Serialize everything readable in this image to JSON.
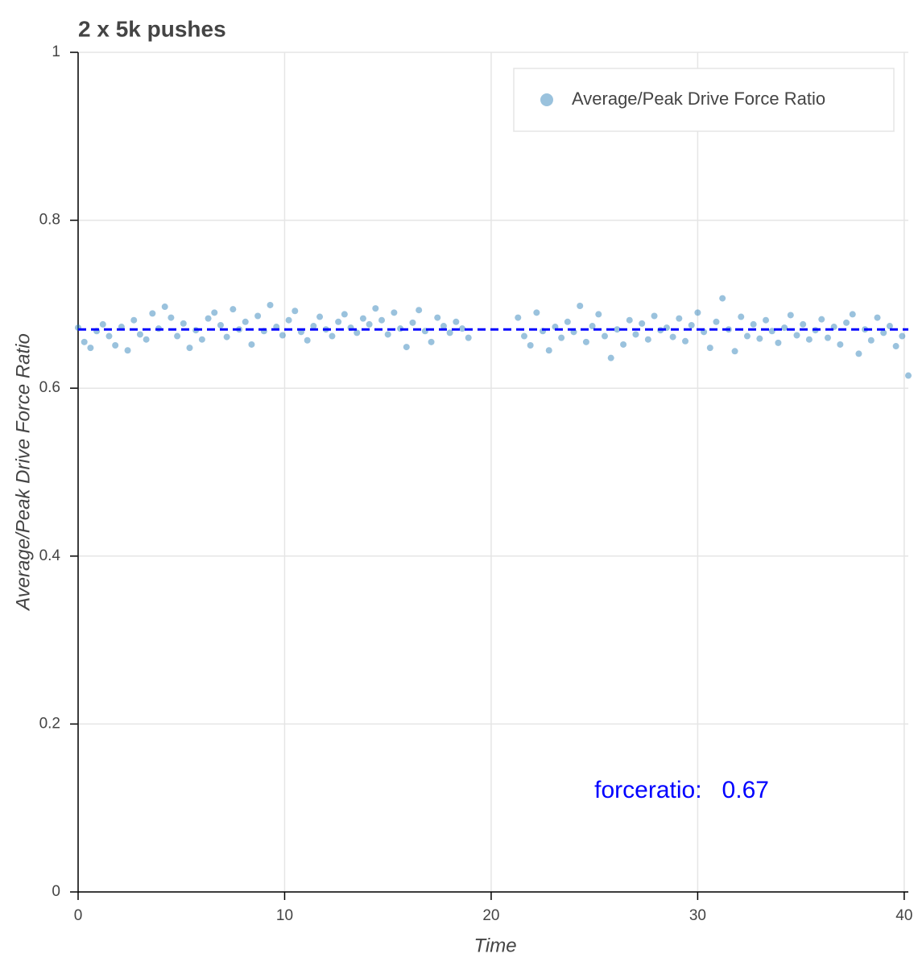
{
  "chart_data": {
    "type": "scatter",
    "title": "2 x 5k pushes",
    "x_label": "Time",
    "y_label": "Average/Peak Drive Force Ratio",
    "xlim": [
      0,
      40.2
    ],
    "xticks": [
      0,
      10,
      20,
      30,
      40
    ],
    "ylim": [
      0,
      1
    ],
    "yticks": [
      0,
      0.2,
      0.4,
      0.6,
      0.8,
      1
    ],
    "grid": true,
    "legend": "top-right",
    "mean_line": {
      "value": 0.67,
      "color": "#0000ff"
    },
    "annotation": "forceratio:   0.67",
    "series": [
      {
        "name": "Average/Peak Drive Force Ratio",
        "color": "#1f77b4",
        "x": [
          0,
          0.3,
          0.6,
          0.9,
          1.2,
          1.5,
          1.8,
          2.1,
          2.4,
          2.7,
          3,
          3.3,
          3.6,
          3.9,
          4.2,
          4.5,
          4.8,
          5.1,
          5.4,
          5.7,
          6,
          6.3,
          6.6,
          6.9,
          7.2,
          7.5,
          7.8,
          8.1,
          8.4,
          8.7,
          9,
          9.3,
          9.6,
          9.9,
          10.2,
          10.5,
          10.8,
          11.1,
          11.4,
          11.7,
          12,
          12.3,
          12.6,
          12.9,
          13.2,
          13.5,
          13.8,
          14.1,
          14.4,
          14.7,
          15,
          15.3,
          15.6,
          15.9,
          16.2,
          16.5,
          16.8,
          17.1,
          17.4,
          17.7,
          18,
          18.3,
          18.6,
          18.9,
          21.3,
          21.6,
          21.9,
          22.2,
          22.5,
          22.8,
          23.1,
          23.4,
          23.7,
          24,
          24.3,
          24.6,
          24.9,
          25.2,
          25.5,
          25.8,
          26.1,
          26.4,
          26.7,
          27,
          27.3,
          27.6,
          27.9,
          28.2,
          28.5,
          28.8,
          29.1,
          29.4,
          29.7,
          30,
          30.3,
          30.6,
          30.9,
          31.2,
          31.5,
          31.8,
          32.1,
          32.4,
          32.7,
          33,
          33.3,
          33.6,
          33.9,
          34.2,
          34.5,
          34.8,
          35.1,
          35.4,
          35.7,
          36,
          36.3,
          36.6,
          36.9,
          37.2,
          37.5,
          37.8,
          38.1,
          38.4,
          38.7,
          39,
          39.3,
          39.6,
          39.9,
          40.2
        ],
        "values": [
          0.672,
          0.655,
          0.648,
          0.668,
          0.676,
          0.662,
          0.651,
          0.673,
          0.645,
          0.681,
          0.664,
          0.658,
          0.689,
          0.671,
          0.697,
          0.684,
          0.662,
          0.677,
          0.648,
          0.669,
          0.658,
          0.683,
          0.69,
          0.675,
          0.661,
          0.694,
          0.67,
          0.679,
          0.652,
          0.686,
          0.668,
          0.699,
          0.673,
          0.663,
          0.681,
          0.692,
          0.667,
          0.657,
          0.674,
          0.685,
          0.67,
          0.662,
          0.679,
          0.688,
          0.672,
          0.666,
          0.683,
          0.676,
          0.695,
          0.681,
          0.664,
          0.69,
          0.671,
          0.649,
          0.678,
          0.693,
          0.668,
          0.655,
          0.684,
          0.674,
          0.666,
          0.679,
          0.671,
          0.66,
          0.684,
          0.662,
          0.651,
          0.69,
          0.668,
          0.645,
          0.673,
          0.66,
          0.679,
          0.667,
          0.698,
          0.655,
          0.674,
          0.688,
          0.662,
          0.636,
          0.67,
          0.652,
          0.681,
          0.664,
          0.677,
          0.658,
          0.686,
          0.669,
          0.672,
          0.661,
          0.683,
          0.656,
          0.675,
          0.69,
          0.667,
          0.648,
          0.679,
          0.707,
          0.67,
          0.644,
          0.685,
          0.662,
          0.676,
          0.659,
          0.681,
          0.668,
          0.654,
          0.672,
          0.687,
          0.663,
          0.676,
          0.658,
          0.669,
          0.682,
          0.66,
          0.673,
          0.652,
          0.678,
          0.688,
          0.641,
          0.67,
          0.657,
          0.684,
          0.666,
          0.674,
          0.65,
          0.662,
          0.615
        ]
      }
    ]
  }
}
